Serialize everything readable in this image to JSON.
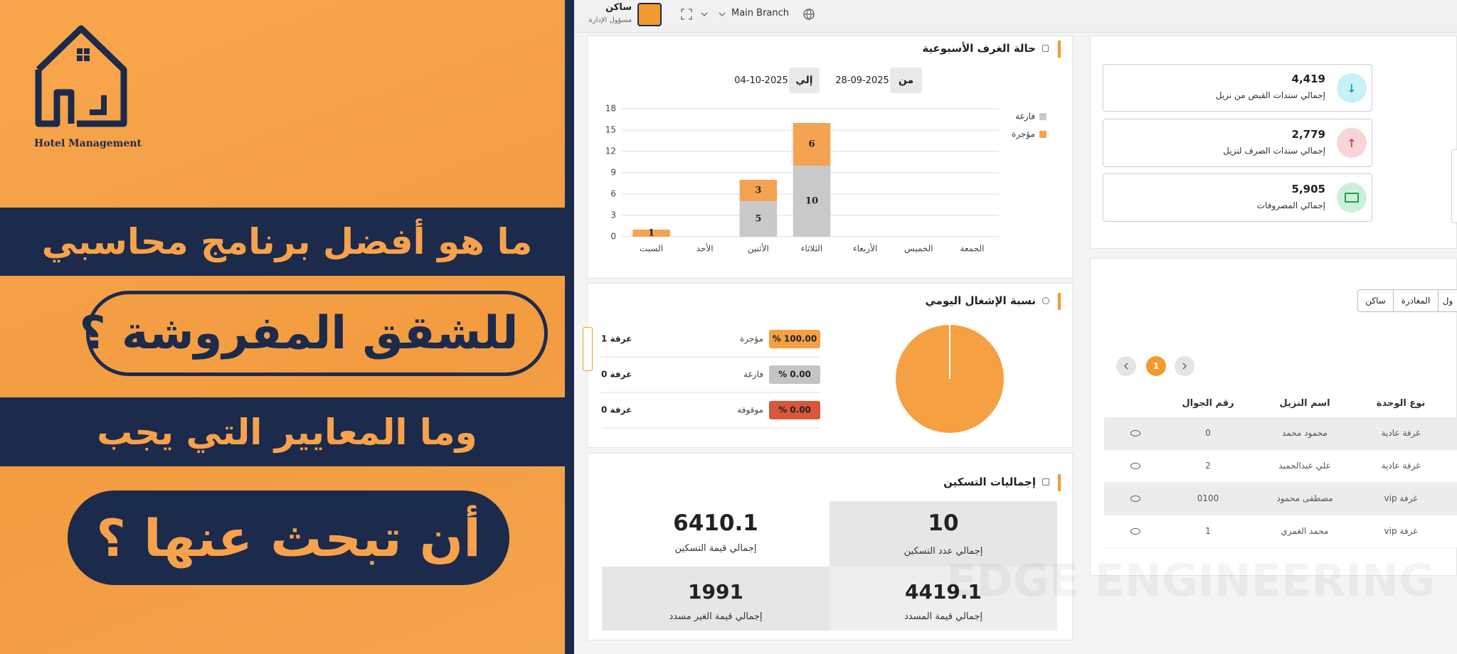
{
  "promo": {
    "brand": "Hotel Management",
    "lines": [
      "ما هو أفضل برنامج محاسبي",
      "للشقق المفروشة ؟",
      "وما المعايير التي يجب",
      "أن تبحث عنها ؟"
    ]
  },
  "header": {
    "user_name": "ساكن",
    "user_role": "مسؤول الإدارة",
    "branch": "Main Branch"
  },
  "date_filter": {
    "from_label": "من",
    "from_date": "28-09-2025",
    "to_label": "إلي",
    "to_date": "04-10-2025"
  },
  "chart_data": [
    {
      "type": "bar",
      "stacked": true,
      "title": "حالة الغرف الأسبوعية",
      "categories": [
        "السبت",
        "الأحد",
        "الأثنين",
        "الثلاثاء",
        "الأربعاء",
        "الخميس",
        "الجمعة"
      ],
      "series": [
        {
          "name": "فارغة",
          "color": "#c9c9c9",
          "values": [
            0,
            0,
            5,
            10,
            0,
            0,
            0
          ]
        },
        {
          "name": "مؤجرة",
          "color": "#f5a352",
          "values": [
            1,
            0,
            3,
            6,
            0,
            0,
            0
          ]
        }
      ],
      "ylim": [
        0,
        18
      ],
      "yticks": [
        0,
        3,
        6,
        9,
        12,
        15,
        18
      ],
      "grid": true,
      "legend": "top-right"
    },
    {
      "type": "pie",
      "title": "نسبة الإشغال اليومي",
      "categories": [
        "مؤجرة",
        "فارغة",
        "موقوفة"
      ],
      "values": [
        100,
        0,
        0
      ],
      "value_labels": [
        "% 100.00",
        "% 0.00",
        "% 0.00"
      ],
      "colors": [
        "#f5a043",
        "#c4c4c4",
        "#d9573a"
      ],
      "count_labels": [
        "1 غرفة",
        "0 غرفة",
        "0 غرفة"
      ]
    }
  ],
  "totals": {
    "title": "إجماليات التسكين",
    "cards": [
      {
        "value": "10",
        "label": "إجمالي عدد التسكين"
      },
      {
        "value": "6410.1",
        "label": "إجمالي قيمة التسكين"
      },
      {
        "value": "4419.1",
        "label": "إجمالي قيمة المسدد"
      },
      {
        "value": "1991",
        "label": "إجمالي قيمة الغير مسدد"
      }
    ]
  },
  "summary_cards": [
    {
      "value": "4,419",
      "label": "إجمالي سندات القبض من نزيل"
    },
    {
      "value": "2,779",
      "label": "إجمالي سندات الصرف لنزيل"
    },
    {
      "value": "5,905",
      "label": "إجمالي المصروفات"
    }
  ],
  "tabs": [
    "ساكن",
    "المغادرة",
    "ول"
  ],
  "pagination": {
    "page": "1"
  },
  "table": {
    "headers": [
      "نوع الوحدة",
      "اسم النزيل",
      "رقم الجوال"
    ],
    "rows": [
      [
        "غرفة عادية",
        "محمود محمد",
        "0"
      ],
      [
        "غرفة عادية",
        "علي عبدالحميد",
        "2"
      ],
      [
        "غرفة vip",
        "مصطفى محمود",
        "0100"
      ],
      [
        "غرفة vip",
        "محمد الغمري",
        "1"
      ]
    ]
  },
  "watermark": "EDGE ENGINEERING"
}
